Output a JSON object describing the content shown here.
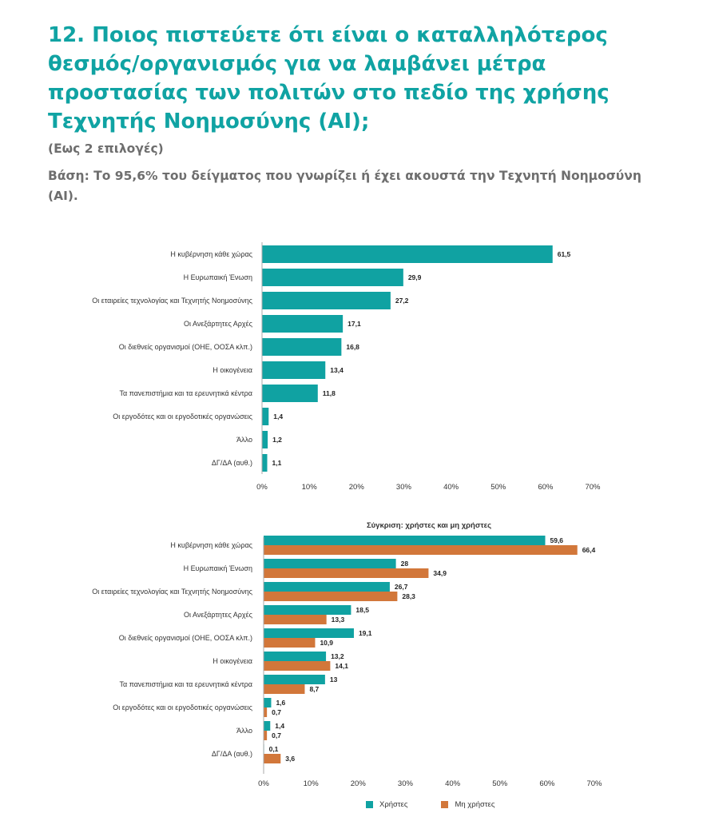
{
  "header": {
    "title": "12. Ποιος πιστεύετε ότι είναι ο καταλληλότερος θεσμός/οργανισμός για να λαμβάνει μέτρα προστασίας των πολιτών στο πεδίο της χρήσης Τεχνητής Νοημοσύνης (AI);",
    "subtitle": "(Εως 2 επιλογές)",
    "base": "Βάση: Το 95,6% του δείγματος που γνωρίζει ή έχει ακουστά την Τεχνητή Νοημοσύνη (AI)."
  },
  "colors": {
    "teal": "#10a2a2",
    "orange": "#d2773a",
    "axis": "#aaaaaa"
  },
  "chart_data": [
    {
      "type": "bar",
      "orientation": "horizontal",
      "title": "",
      "categories": [
        "Η κυβέρνηση κάθε χώρας",
        "Η Ευρωπαική Ένωση",
        "Οι εταιρείες τεχνολογίας και Τεχνητής Νοημοσύνης",
        "Οι Ανεξάρτητες Αρχές",
        "Οι διεθνείς οργανισμοί (ΟΗΕ, ΟΟΣΑ κλπ.)",
        "Η οικογένεια",
        "Τα πανεπιστήμια και τα ερευνητικά κέντρα",
        "Οι εργοδότες και οι εργοδοτικές οργανώσεις",
        "Άλλο",
        "ΔΓ/ΔΑ (αυθ.)"
      ],
      "series": [
        {
          "values": [
            61.5,
            29.9,
            27.2,
            17.1,
            16.8,
            13.4,
            11.8,
            1.4,
            1.2,
            1.1
          ],
          "labels": [
            "61,5",
            "29,9",
            "27,2",
            "17,1",
            "16,8",
            "13,4",
            "11,8",
            "1,4",
            "1,2",
            "1,1"
          ]
        }
      ],
      "xlim": [
        0,
        70
      ],
      "xticks": [
        "0%",
        "10%",
        "20%",
        "30%",
        "40%",
        "50%",
        "60%",
        "70%"
      ],
      "grid": false
    },
    {
      "type": "bar",
      "orientation": "horizontal",
      "title": "Σύγκριση: χρήστες και μη χρήστες",
      "categories": [
        "Η κυβέρνηση κάθε χώρας",
        "Η Ευρωπαική Ένωση",
        "Οι εταιρείες τεχνολογίας και Τεχνητής Νοημοσύνης",
        "Οι Ανεξάρτητες Αρχές",
        "Οι διεθνείς οργανισμοί (ΟΗΕ, ΟΟΣΑ κλπ.)",
        "Η οικογένεια",
        "Τα πανεπιστήμια και τα ερευνητικά κέντρα",
        "Οι εργοδότες και οι εργοδοτικές οργανώσεις",
        "Άλλο",
        "ΔΓ/ΔΑ (αυθ.)"
      ],
      "series": [
        {
          "name": "Χρήστες",
          "values": [
            59.6,
            28,
            26.7,
            18.5,
            19.1,
            13.2,
            13,
            1.6,
            1.4,
            0.1
          ],
          "labels": [
            "59,6",
            "28",
            "26,7",
            "18,5",
            "19,1",
            "13,2",
            "13",
            "1,6",
            "1,4",
            "0,1"
          ]
        },
        {
          "name": "Μη χρήστες",
          "values": [
            66.4,
            34.9,
            28.3,
            13.3,
            10.9,
            14.1,
            8.7,
            0.7,
            0.7,
            3.6
          ],
          "labels": [
            "66,4",
            "34,9",
            "28,3",
            "13,3",
            "10,9",
            "14,1",
            "8,7",
            "0,7",
            "0,7",
            "3,6"
          ]
        }
      ],
      "xlim": [
        0,
        70
      ],
      "xticks": [
        "0%",
        "10%",
        "20%",
        "30%",
        "40%",
        "50%",
        "60%",
        "70%"
      ],
      "grid": false,
      "legend_position": "bottom"
    }
  ]
}
